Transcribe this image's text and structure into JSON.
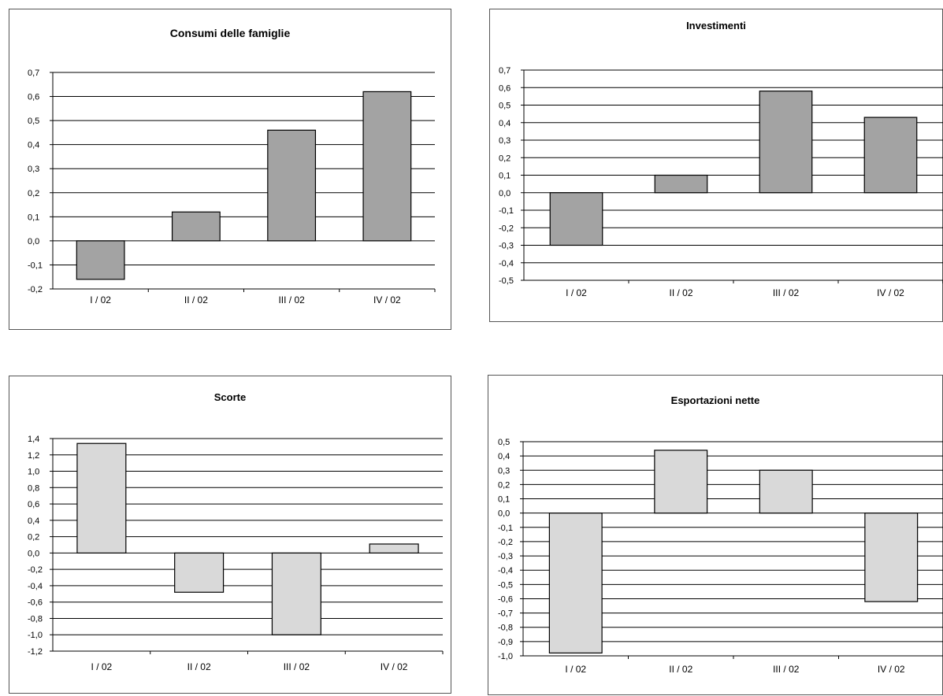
{
  "colors": {
    "dark_bar": "#a3a3a3",
    "light_bar": "#d9d9d9",
    "grid": "#000000"
  },
  "chart_data": [
    {
      "type": "bar",
      "title": "Consumi delle famiglie",
      "categories": [
        "I / 02",
        "II / 02",
        "III / 02",
        "IV / 02"
      ],
      "values": [
        -0.16,
        0.12,
        0.46,
        0.62
      ],
      "ylim": [
        -0.2,
        0.7
      ],
      "ystep": 0.1,
      "decimals": 1,
      "grid": true,
      "bar_color": "dark"
    },
    {
      "type": "bar",
      "title": "Investimenti",
      "categories": [
        "I / 02",
        "II / 02",
        "III / 02",
        "IV / 02"
      ],
      "values": [
        -0.3,
        0.1,
        0.58,
        0.43
      ],
      "ylim": [
        -0.5,
        0.7
      ],
      "ystep": 0.1,
      "decimals": 1,
      "grid": true,
      "bar_color": "dark"
    },
    {
      "type": "bar",
      "title": "Scorte",
      "categories": [
        "I / 02",
        "II / 02",
        "III / 02",
        "IV / 02"
      ],
      "values": [
        1.34,
        -0.48,
        -1.0,
        0.11
      ],
      "ylim": [
        -1.2,
        1.4
      ],
      "ystep": 0.2,
      "decimals": 1,
      "grid": true,
      "bar_color": "light"
    },
    {
      "type": "bar",
      "title": "Esportazioni nette",
      "categories": [
        "I / 02",
        "II / 02",
        "III / 02",
        "IV / 02"
      ],
      "values": [
        -0.98,
        0.44,
        0.3,
        -0.62
      ],
      "ylim": [
        -1.0,
        0.5
      ],
      "ystep": 0.1,
      "decimals": 1,
      "grid": true,
      "bar_color": "light"
    }
  ]
}
